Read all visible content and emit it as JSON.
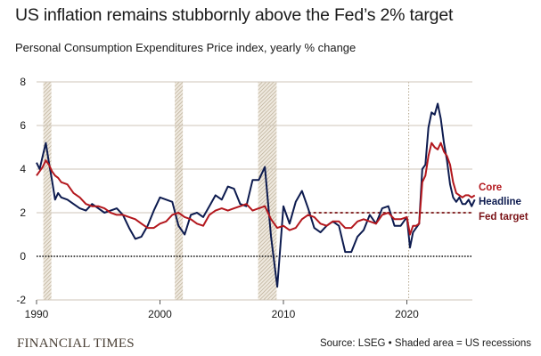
{
  "header": {
    "title": "US inflation remains stubbornly above the Fed’s 2% target",
    "subtitle": "Personal Consumption Expenditures Price index, yearly % change"
  },
  "footer": {
    "brand": "FINANCIAL TIMES",
    "source": "Source: LSEG • Shaded area = US recessions"
  },
  "colors": {
    "headline": "#0d1b4f",
    "core": "#b3171d",
    "fed_target": "#7a1216",
    "grid": "#cfc6b8",
    "recession_hatch": "#b5a88f"
  },
  "chart_data": {
    "type": "line",
    "title": "US inflation remains stubbornly above the Fed’s 2% target",
    "subtitle": "Personal Consumption Expenditures Price index, yearly % change",
    "xlabel": "",
    "ylabel": "",
    "xlim": [
      1990,
      2025.6
    ],
    "ylim": [
      -2,
      8
    ],
    "yticks": [
      -2,
      0,
      2,
      4,
      6,
      8
    ],
    "xticks": [
      1990,
      2000,
      2010,
      2020
    ],
    "grid": true,
    "legend": "right-end labels",
    "recessions": [
      {
        "start": 1990.55,
        "end": 1991.2
      },
      {
        "start": 2001.2,
        "end": 2001.85
      },
      {
        "start": 2007.95,
        "end": 2009.45
      },
      {
        "start": 2020.15,
        "end": 2020.3
      }
    ],
    "fed_target": {
      "label": "Fed target",
      "value": 2,
      "from": 2012.0
    },
    "series": [
      {
        "name": "Core",
        "label": "Core",
        "x": [
          1990,
          1990.25,
          1990.5,
          1990.75,
          1991,
          1991.25,
          1991.5,
          1991.75,
          1992,
          1992.5,
          1993,
          1993.5,
          1994,
          1994.5,
          1995,
          1995.5,
          1996,
          1996.5,
          1997,
          1997.5,
          1998,
          1998.5,
          1999,
          1999.5,
          2000,
          2000.5,
          2001,
          2001.5,
          2002,
          2002.5,
          2003,
          2003.5,
          2004,
          2004.5,
          2005,
          2005.5,
          2006,
          2006.5,
          2007,
          2007.5,
          2008,
          2008.5,
          2009,
          2009.5,
          2010,
          2010.5,
          2011,
          2011.5,
          2012,
          2012.5,
          2013,
          2013.5,
          2014,
          2014.5,
          2015,
          2015.5,
          2016,
          2016.5,
          2017,
          2017.5,
          2018,
          2018.5,
          2019,
          2019.5,
          2020,
          2020.25,
          2020.5,
          2020.75,
          2021,
          2021.25,
          2021.5,
          2021.75,
          2022,
          2022.25,
          2022.5,
          2022.75,
          2023,
          2023.25,
          2023.5,
          2023.75,
          2024,
          2024.25,
          2024.5,
          2024.75,
          2025,
          2025.25,
          2025.5
        ],
        "values": [
          3.7,
          3.9,
          4.1,
          4.4,
          4.2,
          3.9,
          3.7,
          3.6,
          3.4,
          3.3,
          2.9,
          2.7,
          2.4,
          2.3,
          2.3,
          2.2,
          2.0,
          1.9,
          1.9,
          1.8,
          1.7,
          1.5,
          1.3,
          1.3,
          1.5,
          1.6,
          1.9,
          2.0,
          1.8,
          1.7,
          1.5,
          1.4,
          1.9,
          2.1,
          2.2,
          2.1,
          2.2,
          2.3,
          2.4,
          2.1,
          2.2,
          2.3,
          1.7,
          1.3,
          1.4,
          1.2,
          1.3,
          1.7,
          1.9,
          1.8,
          1.5,
          1.4,
          1.6,
          1.6,
          1.3,
          1.3,
          1.6,
          1.7,
          1.6,
          1.5,
          1.9,
          2.0,
          1.7,
          1.7,
          1.8,
          1.0,
          1.4,
          1.4,
          1.5,
          3.4,
          3.7,
          4.6,
          5.2,
          5.0,
          4.9,
          5.2,
          4.8,
          4.6,
          4.2,
          3.4,
          2.9,
          2.8,
          2.7,
          2.8,
          2.8,
          2.7,
          2.8
        ]
      },
      {
        "name": "Headline",
        "label": "Headline",
        "x": [
          1990,
          1990.25,
          1990.5,
          1990.75,
          1991,
          1991.25,
          1991.5,
          1991.75,
          1992,
          1992.5,
          1993,
          1993.5,
          1994,
          1994.5,
          1995,
          1995.5,
          1996,
          1996.5,
          1997,
          1997.5,
          1998,
          1998.5,
          1999,
          1999.5,
          2000,
          2000.5,
          2001,
          2001.5,
          2002,
          2002.5,
          2003,
          2003.5,
          2004,
          2004.5,
          2005,
          2005.5,
          2006,
          2006.5,
          2007,
          2007.5,
          2008,
          2008.5,
          2009,
          2009.5,
          2010,
          2010.5,
          2011,
          2011.5,
          2012,
          2012.5,
          2013,
          2013.5,
          2014,
          2014.5,
          2015,
          2015.5,
          2016,
          2016.5,
          2017,
          2017.5,
          2018,
          2018.5,
          2019,
          2019.5,
          2020,
          2020.25,
          2020.5,
          2020.75,
          2021,
          2021.25,
          2021.5,
          2021.75,
          2022,
          2022.25,
          2022.5,
          2022.75,
          2023,
          2023.25,
          2023.5,
          2023.75,
          2024,
          2024.25,
          2024.5,
          2024.75,
          2025,
          2025.25,
          2025.5
        ],
        "values": [
          4.3,
          4.0,
          4.6,
          5.2,
          4.3,
          3.5,
          2.6,
          2.9,
          2.7,
          2.6,
          2.4,
          2.2,
          2.1,
          2.4,
          2.2,
          2.0,
          2.1,
          2.2,
          1.9,
          1.3,
          0.8,
          0.9,
          1.4,
          2.1,
          2.7,
          2.6,
          2.5,
          1.4,
          1.0,
          1.9,
          2.0,
          1.8,
          2.3,
          2.8,
          2.6,
          3.2,
          3.1,
          2.4,
          2.3,
          3.5,
          3.5,
          4.1,
          0.9,
          -1.4,
          2.3,
          1.5,
          2.5,
          3.0,
          2.2,
          1.3,
          1.1,
          1.4,
          1.6,
          1.4,
          0.2,
          0.2,
          0.9,
          1.2,
          1.9,
          1.5,
          2.2,
          2.3,
          1.4,
          1.4,
          1.8,
          0.4,
          1.1,
          1.3,
          1.5,
          4.0,
          4.2,
          5.9,
          6.6,
          6.5,
          7.0,
          6.3,
          5.2,
          4.4,
          3.3,
          2.7,
          2.5,
          2.7,
          2.4,
          2.4,
          2.6,
          2.3,
          2.6
        ]
      }
    ]
  }
}
